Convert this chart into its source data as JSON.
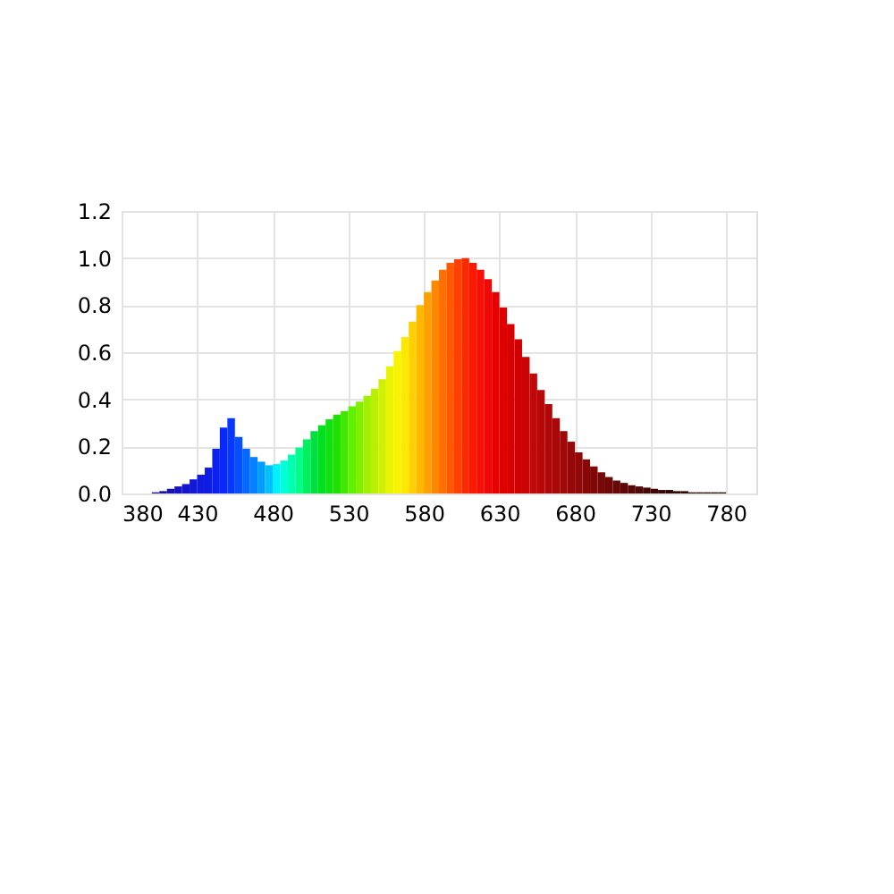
{
  "chart_data": {
    "type": "histogram",
    "bins": [
      380,
      385,
      390,
      395,
      400,
      405,
      410,
      415,
      420,
      425,
      430,
      435,
      440,
      445,
      450,
      455,
      460,
      465,
      470,
      475,
      480,
      485,
      490,
      495,
      500,
      505,
      510,
      515,
      520,
      525,
      530,
      535,
      540,
      545,
      550,
      555,
      560,
      565,
      570,
      575,
      580,
      585,
      590,
      595,
      600,
      605,
      610,
      615,
      620,
      625,
      630,
      635,
      640,
      645,
      650,
      655,
      660,
      665,
      670,
      675,
      680,
      685,
      690,
      695,
      700,
      705,
      710,
      715,
      720,
      725,
      730,
      735,
      740,
      745,
      750,
      755,
      760,
      765,
      770,
      775,
      780,
      785,
      790,
      795,
      800
    ],
    "values": [
      0,
      0,
      0,
      0,
      0.005,
      0.01,
      0.02,
      0.03,
      0.04,
      0.06,
      0.08,
      0.11,
      0.19,
      0.28,
      0.32,
      0.24,
      0.19,
      0.155,
      0.135,
      0.12,
      0.125,
      0.14,
      0.165,
      0.195,
      0.23,
      0.265,
      0.29,
      0.315,
      0.335,
      0.35,
      0.37,
      0.39,
      0.415,
      0.445,
      0.485,
      0.54,
      0.605,
      0.665,
      0.73,
      0.8,
      0.855,
      0.905,
      0.95,
      0.98,
      0.995,
      1.0,
      0.98,
      0.95,
      0.91,
      0.855,
      0.79,
      0.72,
      0.655,
      0.58,
      0.51,
      0.44,
      0.38,
      0.32,
      0.265,
      0.22,
      0.175,
      0.145,
      0.115,
      0.09,
      0.07,
      0.055,
      0.045,
      0.035,
      0.03,
      0.025,
      0.02,
      0.015,
      0.015,
      0.01,
      0.01,
      0.005,
      0.005,
      0.005,
      0.005,
      0.005,
      0,
      0,
      0,
      0
    ],
    "colors": [
      "#1b0f4f",
      "#1e0f60",
      "#200f70",
      "#1f0f80",
      "#1c1090",
      "#1a10a0",
      "#1812b0",
      "#1614c0",
      "#1416cc",
      "#1218d6",
      "#101ae0",
      "#0e1ce8",
      "#0c20f0",
      "#0a28f8",
      "#0838ff",
      "#0650ff",
      "#0468ff",
      "#0280ff",
      "#009cff",
      "#00c0ff",
      "#00f0ff",
      "#00ffd8",
      "#00ffb0",
      "#00ff88",
      "#00f060",
      "#00e040",
      "#00e020",
      "#10e010",
      "#20e000",
      "#40e800",
      "#60f000",
      "#80f000",
      "#a0f000",
      "#b8f000",
      "#d0f000",
      "#e8f400",
      "#f8f400",
      "#ffe800",
      "#ffd000",
      "#ffb800",
      "#ffa000",
      "#ff8800",
      "#ff7000",
      "#ff5800",
      "#ff4000",
      "#ff2800",
      "#ff1800",
      "#f81008",
      "#f00808",
      "#e80000",
      "#e00000",
      "#d80000",
      "#d00000",
      "#c80404",
      "#c00808",
      "#b80808",
      "#b00808",
      "#a80808",
      "#a00808",
      "#980808",
      "#900808",
      "#880808",
      "#800808",
      "#780808",
      "#700808",
      "#680808",
      "#600808",
      "#580808",
      "#500808",
      "#480808",
      "#400808",
      "#380808",
      "#300808",
      "#300808",
      "#300808",
      "#300808",
      "#300808",
      "#300808",
      "#300808",
      "#300808",
      "#300808",
      "#300808",
      "#300808",
      "#300808"
    ],
    "xlim": [
      380,
      800
    ],
    "xticks": [
      380,
      430,
      480,
      530,
      580,
      630,
      680,
      730,
      780
    ],
    "ylim": [
      0,
      1.2
    ],
    "yticks": [
      {
        "value": 0,
        "label": "0.0"
      },
      0.2,
      0.4,
      0.6,
      0.8,
      {
        "value": 1,
        "label": "1.0"
      },
      1.2
    ],
    "grid": true
  }
}
